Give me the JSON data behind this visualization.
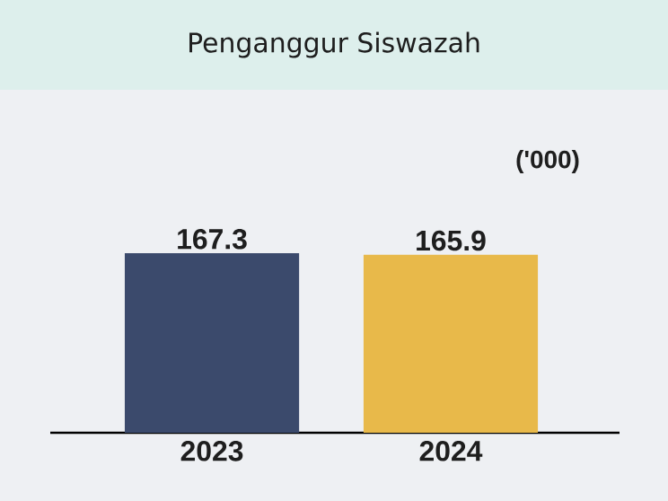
{
  "chart_data": {
    "type": "bar",
    "title": "Penganggur Siswazah",
    "annotations": [
      "('000)"
    ],
    "categories": [
      "2023",
      "2024"
    ],
    "values": [
      167.3,
      165.9
    ],
    "colors": [
      "#3b4a6c",
      "#e8b94a"
    ],
    "data_labels": true
  }
}
